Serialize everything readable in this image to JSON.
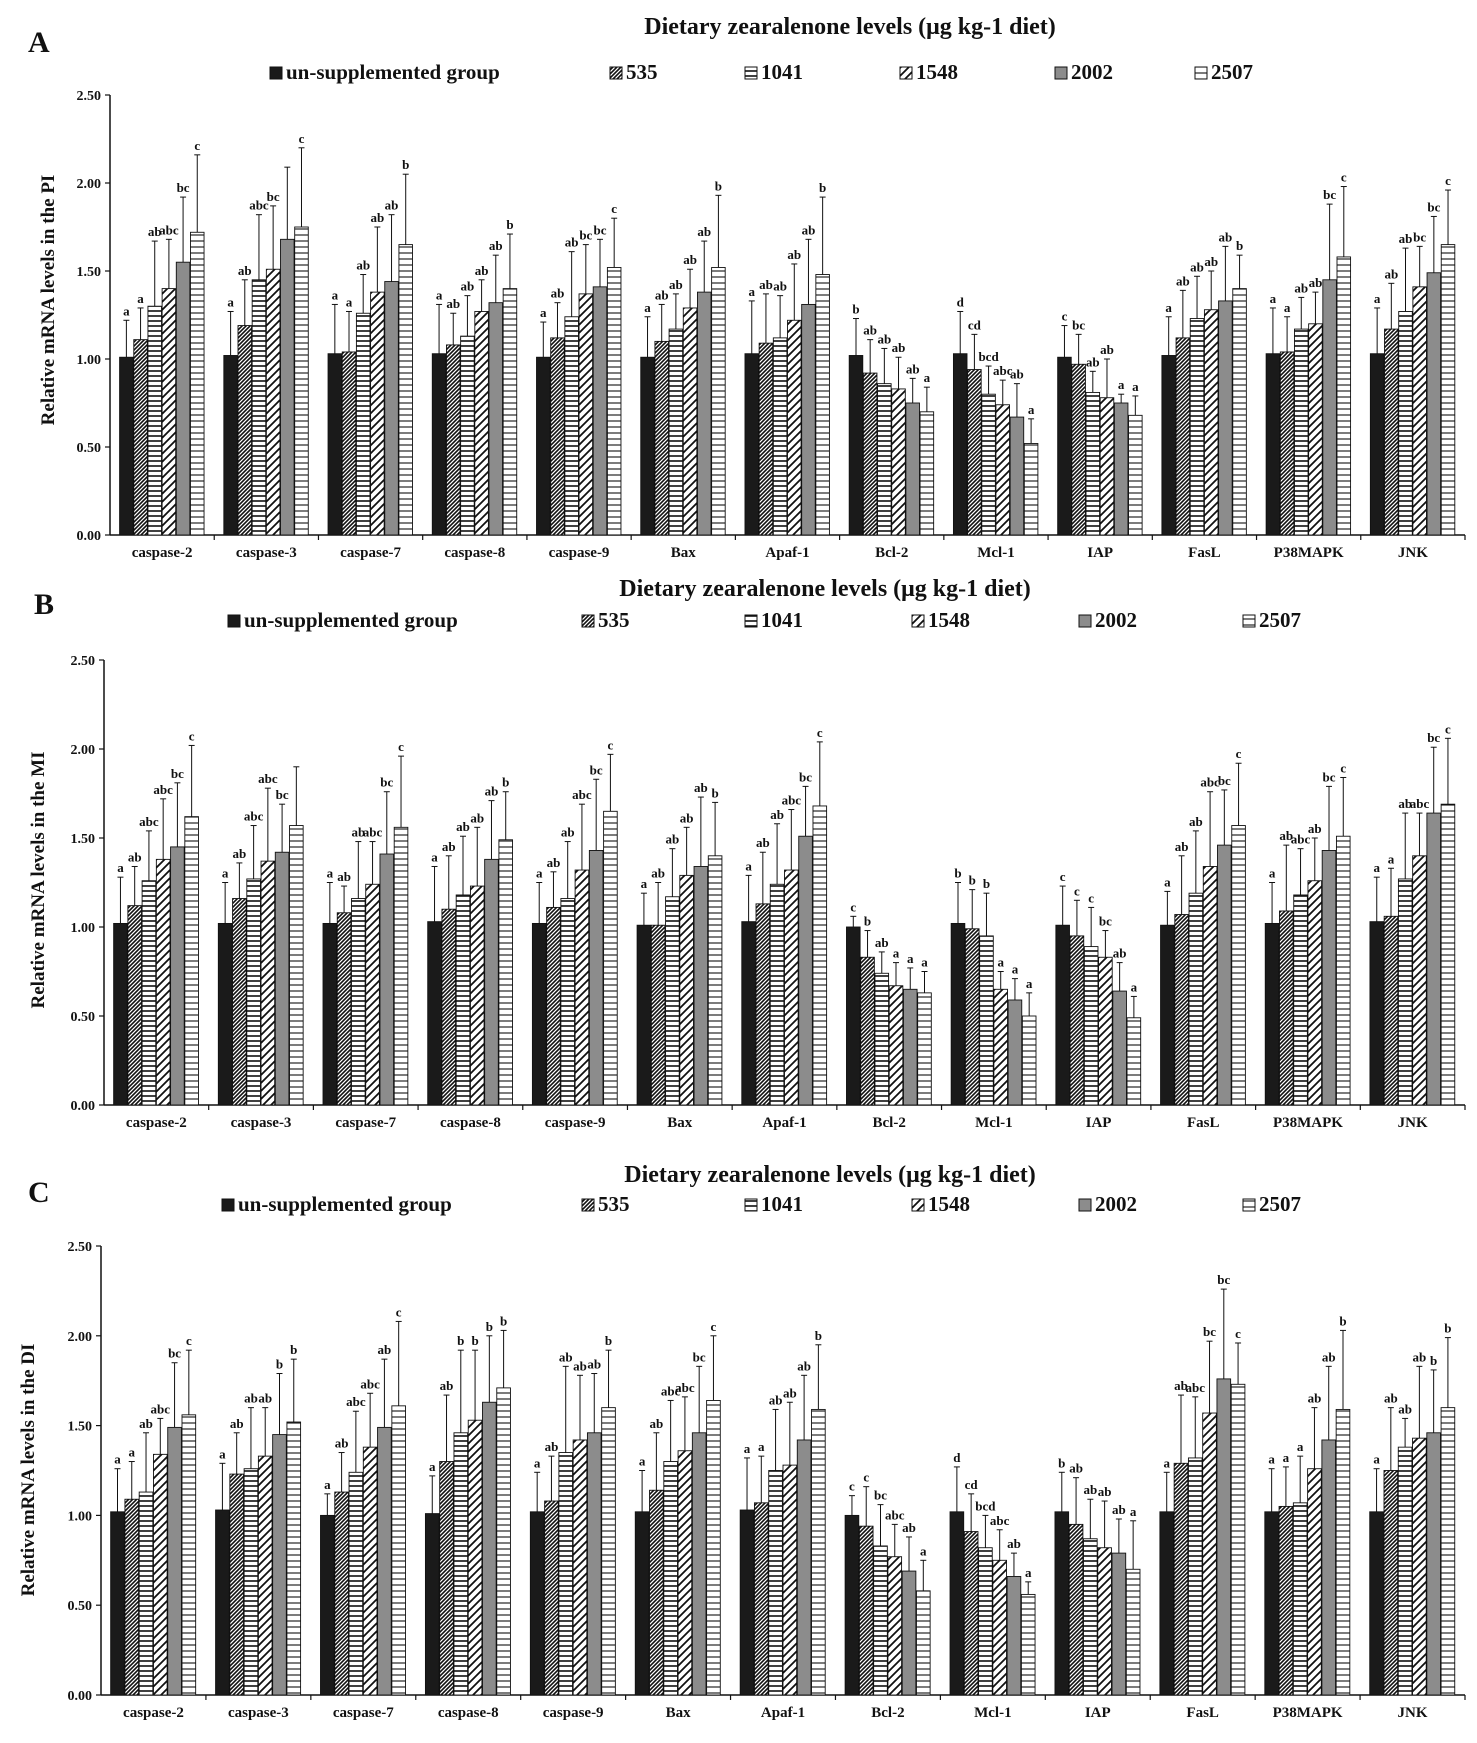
{
  "legend": {
    "entries": [
      "un-supplemented group",
      "535",
      "1041",
      "1548",
      "2002",
      "2507"
    ]
  },
  "series_styles": [
    {
      "fill": "#1a1a1a",
      "pattern": "solid"
    },
    {
      "fill": "#ffffff",
      "pattern": "diag-dense"
    },
    {
      "fill": "#ffffff",
      "pattern": "horizontal"
    },
    {
      "fill": "#ffffff",
      "pattern": "diag-wide"
    },
    {
      "fill": "#8c8c8c",
      "pattern": "solid"
    },
    {
      "fill": "#ffffff",
      "pattern": "horizontal-wide"
    }
  ],
  "chart_data": [
    {
      "type": "bar",
      "panel": "A",
      "title": "Dietary zearalenone levels (μg kg-1 diet)",
      "ylabel": "Relative mRNA levels in the PI",
      "ylim": [
        0,
        2.5
      ],
      "yticks": [
        "0.00",
        "0.50",
        "1.00",
        "1.50",
        "2.00",
        "2.50"
      ],
      "categories": [
        "caspase-2",
        "caspase-3",
        "caspase-7",
        "caspase-8",
        "caspase-9",
        "Bax",
        "Apaf-1",
        "Bcl-2",
        "Mcl-1",
        "IAP",
        "FasL",
        "P38MAPK",
        "JNK"
      ],
      "series": [
        {
          "name": "un-supplemented group",
          "values": [
            1.01,
            1.02,
            1.03,
            1.03,
            1.01,
            1.01,
            1.03,
            1.02,
            1.03,
            1.01,
            1.02,
            1.03,
            1.03
          ],
          "errors": [
            0.21,
            0.25,
            0.28,
            0.28,
            0.2,
            0.23,
            0.3,
            0.21,
            0.24,
            0.18,
            0.22,
            0.26,
            0.26
          ],
          "letters": [
            "a",
            "a",
            "a",
            "a",
            "a",
            "a",
            "a",
            "b",
            "d",
            "c",
            "a",
            "a",
            "a"
          ]
        },
        {
          "name": "535",
          "values": [
            1.11,
            1.19,
            1.04,
            1.08,
            1.12,
            1.1,
            1.09,
            0.92,
            0.94,
            0.97,
            1.12,
            1.04,
            1.17
          ],
          "errors": [
            0.18,
            0.26,
            0.23,
            0.18,
            0.2,
            0.21,
            0.28,
            0.19,
            0.2,
            0.17,
            0.27,
            0.2,
            0.26
          ],
          "letters": [
            "a",
            "ab",
            "a",
            "ab",
            "ab",
            "ab",
            "ab",
            "ab",
            "cd",
            "bc",
            "ab",
            "a",
            "ab"
          ]
        },
        {
          "name": "1041",
          "values": [
            1.3,
            1.45,
            1.26,
            1.13,
            1.24,
            1.17,
            1.12,
            0.86,
            0.8,
            0.81,
            1.23,
            1.17,
            1.27
          ],
          "errors": [
            0.37,
            0.37,
            0.22,
            0.23,
            0.37,
            0.2,
            0.24,
            0.2,
            0.16,
            0.12,
            0.24,
            0.18,
            0.36
          ],
          "letters": [
            "ab",
            "abc",
            "ab",
            "ab",
            "ab",
            "ab",
            "ab",
            "ab",
            "bcd",
            "ab",
            "ab",
            "ab",
            "ab"
          ]
        },
        {
          "name": "1548",
          "values": [
            1.4,
            1.51,
            1.38,
            1.27,
            1.37,
            1.29,
            1.22,
            0.83,
            0.74,
            0.78,
            1.28,
            1.2,
            1.41
          ],
          "errors": [
            0.28,
            0.36,
            0.37,
            0.18,
            0.28,
            0.22,
            0.32,
            0.18,
            0.14,
            0.22,
            0.22,
            0.18,
            0.23
          ],
          "letters": [
            "abc",
            "bc",
            "ab",
            "ab",
            "bc",
            "ab",
            "ab",
            "ab",
            "abc",
            "ab",
            "ab",
            "ab",
            "bc"
          ]
        },
        {
          "name": "2002",
          "values": [
            1.55,
            1.68,
            1.44,
            1.32,
            1.41,
            1.38,
            1.31,
            0.75,
            0.67,
            0.75,
            1.33,
            1.45,
            1.49
          ],
          "errors": [
            0.37,
            0.41,
            0.38,
            0.27,
            0.27,
            0.29,
            0.37,
            0.14,
            0.19,
            0.05,
            0.31,
            0.43,
            0.32
          ],
          "letters": [
            "bc",
            "",
            "ab",
            "ab",
            "bc",
            "ab",
            "ab",
            "ab",
            "ab",
            "a",
            "ab",
            "bc",
            "bc"
          ]
        },
        {
          "name": "2507",
          "values": [
            1.72,
            1.75,
            1.65,
            1.4,
            1.52,
            1.52,
            1.48,
            0.7,
            0.52,
            0.68,
            1.4,
            1.58,
            1.65
          ],
          "errors": [
            0.44,
            0.45,
            0.4,
            0.31,
            0.28,
            0.41,
            0.44,
            0.14,
            0.14,
            0.11,
            0.19,
            0.4,
            0.31
          ],
          "letters": [
            "c",
            "c",
            "b",
            "b",
            "c",
            "b",
            "b",
            "a",
            "a",
            "a",
            "b",
            "c",
            "c"
          ]
        }
      ]
    },
    {
      "type": "bar",
      "panel": "B",
      "title": "Dietary zearalenone levels (μg kg-1 diet)",
      "ylabel": "Relative mRNA levels in the MI",
      "ylim": [
        0,
        2.5
      ],
      "yticks": [
        "0.00",
        "0.50",
        "1.00",
        "1.50",
        "2.00",
        "2.50"
      ],
      "categories": [
        "caspase-2",
        "caspase-3",
        "caspase-7",
        "caspase-8",
        "caspase-9",
        "Bax",
        "Apaf-1",
        "Bcl-2",
        "Mcl-1",
        "IAP",
        "FasL",
        "P38MAPK",
        "JNK"
      ],
      "series": [
        {
          "name": "un-supplemented group",
          "values": [
            1.02,
            1.02,
            1.02,
            1.03,
            1.02,
            1.01,
            1.03,
            1.0,
            1.02,
            1.01,
            1.01,
            1.02,
            1.03
          ],
          "errors": [
            0.26,
            0.23,
            0.23,
            0.31,
            0.23,
            0.18,
            0.26,
            0.06,
            0.23,
            0.22,
            0.19,
            0.23,
            0.25
          ],
          "letters": [
            "a",
            "a",
            "a",
            "a",
            "a",
            "a",
            "a",
            "c",
            "b",
            "c",
            "a",
            "a",
            "a"
          ]
        },
        {
          "name": "535",
          "values": [
            1.12,
            1.16,
            1.08,
            1.1,
            1.11,
            1.01,
            1.13,
            0.83,
            0.99,
            0.95,
            1.07,
            1.09,
            1.06
          ],
          "errors": [
            0.22,
            0.2,
            0.15,
            0.3,
            0.2,
            0.24,
            0.29,
            0.15,
            0.22,
            0.2,
            0.33,
            0.37,
            0.27
          ],
          "letters": [
            "ab",
            "ab",
            "ab",
            "ab",
            "ab",
            "ab",
            "ab",
            "b",
            "b",
            "c",
            "ab",
            "ab",
            "a"
          ]
        },
        {
          "name": "1041",
          "values": [
            1.26,
            1.27,
            1.16,
            1.18,
            1.16,
            1.17,
            1.24,
            0.74,
            0.95,
            0.89,
            1.19,
            1.18,
            1.27
          ],
          "errors": [
            0.28,
            0.3,
            0.32,
            0.33,
            0.32,
            0.27,
            0.34,
            0.12,
            0.24,
            0.22,
            0.35,
            0.26,
            0.37
          ],
          "letters": [
            "abc",
            "abc",
            "ab",
            "ab",
            "ab",
            "ab",
            "ab",
            "ab",
            "b",
            "c",
            "ab",
            "abc",
            "ab"
          ]
        },
        {
          "name": "1548",
          "values": [
            1.38,
            1.37,
            1.24,
            1.23,
            1.32,
            1.29,
            1.32,
            0.67,
            0.65,
            0.83,
            1.34,
            1.26,
            1.4
          ],
          "errors": [
            0.34,
            0.41,
            0.24,
            0.33,
            0.37,
            0.27,
            0.34,
            0.13,
            0.1,
            0.15,
            0.42,
            0.24,
            0.24
          ],
          "letters": [
            "abc",
            "abc",
            "abc",
            "ab",
            "abc",
            "ab",
            "abc",
            "a",
            "a",
            "bc",
            "abc",
            "ab",
            "abc"
          ]
        },
        {
          "name": "2002",
          "values": [
            1.45,
            1.42,
            1.41,
            1.38,
            1.43,
            1.34,
            1.51,
            0.65,
            0.59,
            0.64,
            1.46,
            1.43,
            1.64
          ],
          "errors": [
            0.36,
            0.27,
            0.35,
            0.33,
            0.4,
            0.39,
            0.28,
            0.12,
            0.12,
            0.16,
            0.31,
            0.36,
            0.37
          ],
          "letters": [
            "bc",
            "bc",
            "bc",
            "ab",
            "bc",
            "ab",
            "bc",
            "a",
            "a",
            "ab",
            "bc",
            "bc",
            "bc"
          ]
        },
        {
          "name": "2507",
          "values": [
            1.62,
            1.57,
            1.56,
            1.49,
            1.65,
            1.4,
            1.68,
            0.63,
            0.5,
            0.49,
            1.57,
            1.51,
            1.69
          ],
          "errors": [
            0.4,
            0.33,
            0.4,
            0.27,
            0.32,
            0.3,
            0.36,
            0.12,
            0.13,
            0.12,
            0.35,
            0.33,
            0.37
          ],
          "letters": [
            "c",
            "",
            "c",
            "b",
            "c",
            "b",
            "c",
            "a",
            "a",
            "a",
            "c",
            "c",
            "c"
          ]
        }
      ]
    },
    {
      "type": "bar",
      "panel": "C",
      "title": "Dietary zearalenone levels (μg kg-1 diet)",
      "ylabel": "Relative mRNA levels in the DI",
      "ylim": [
        0,
        2.5
      ],
      "yticks": [
        "0.00",
        "0.50",
        "1.00",
        "1.50",
        "2.00",
        "2.50"
      ],
      "categories": [
        "caspase-2",
        "caspase-3",
        "caspase-7",
        "caspase-8",
        "caspase-9",
        "Bax",
        "Apaf-1",
        "Bcl-2",
        "Mcl-1",
        "IAP",
        "FasL",
        "P38MAPK",
        "JNK"
      ],
      "series": [
        {
          "name": "un-supplemented group",
          "values": [
            1.02,
            1.03,
            1.0,
            1.01,
            1.02,
            1.02,
            1.03,
            1.0,
            1.02,
            1.02,
            1.02,
            1.02,
            1.02
          ],
          "errors": [
            0.24,
            0.26,
            0.12,
            0.21,
            0.22,
            0.23,
            0.29,
            0.11,
            0.25,
            0.22,
            0.22,
            0.24,
            0.24
          ],
          "letters": [
            "a",
            "a",
            "a",
            "a",
            "a",
            "a",
            "a",
            "c",
            "d",
            "b",
            "a",
            "a",
            "a"
          ]
        },
        {
          "name": "535",
          "values": [
            1.09,
            1.23,
            1.13,
            1.3,
            1.08,
            1.14,
            1.07,
            0.94,
            0.91,
            0.95,
            1.29,
            1.05,
            1.25
          ],
          "errors": [
            0.21,
            0.23,
            0.22,
            0.37,
            0.25,
            0.32,
            0.26,
            0.22,
            0.21,
            0.26,
            0.38,
            0.22,
            0.35
          ],
          "letters": [
            "a",
            "ab",
            "ab",
            "ab",
            "ab",
            "ab",
            "a",
            "c",
            "cd",
            "ab",
            "ab",
            "a",
            "ab"
          ]
        },
        {
          "name": "1041",
          "values": [
            1.13,
            1.26,
            1.24,
            1.46,
            1.35,
            1.3,
            1.25,
            0.83,
            0.82,
            0.87,
            1.32,
            1.07,
            1.38
          ],
          "errors": [
            0.33,
            0.34,
            0.34,
            0.46,
            0.48,
            0.34,
            0.34,
            0.23,
            0.18,
            0.22,
            0.34,
            0.26,
            0.16
          ],
          "letters": [
            "ab",
            "ab",
            "abc",
            "b",
            "ab",
            "abc",
            "ab",
            "bc",
            "bcd",
            "ab",
            "abc",
            "a",
            "ab"
          ]
        },
        {
          "name": "1548",
          "values": [
            1.34,
            1.33,
            1.38,
            1.53,
            1.42,
            1.36,
            1.28,
            0.77,
            0.75,
            0.82,
            1.57,
            1.26,
            1.43
          ],
          "errors": [
            0.2,
            0.27,
            0.3,
            0.39,
            0.36,
            0.3,
            0.35,
            0.18,
            0.17,
            0.26,
            0.4,
            0.34,
            0.4
          ],
          "letters": [
            "abc",
            "ab",
            "abc",
            "b",
            "ab",
            "abc",
            "ab",
            "abc",
            "abc",
            "ab",
            "bc",
            "ab",
            "ab"
          ]
        },
        {
          "name": "2002",
          "values": [
            1.49,
            1.45,
            1.49,
            1.63,
            1.46,
            1.46,
            1.42,
            0.69,
            0.66,
            0.79,
            1.76,
            1.42,
            1.46
          ],
          "errors": [
            0.36,
            0.34,
            0.38,
            0.37,
            0.33,
            0.37,
            0.36,
            0.19,
            0.13,
            0.19,
            0.5,
            0.41,
            0.35
          ],
          "letters": [
            "bc",
            "b",
            "ab",
            "b",
            "ab",
            "bc",
            "ab",
            "ab",
            "ab",
            "ab",
            "bc",
            "ab",
            "b"
          ]
        },
        {
          "name": "2507",
          "values": [
            1.56,
            1.52,
            1.61,
            1.71,
            1.6,
            1.64,
            1.59,
            0.58,
            0.56,
            0.7,
            1.73,
            1.59,
            1.6
          ],
          "errors": [
            0.36,
            0.35,
            0.47,
            0.32,
            0.32,
            0.36,
            0.36,
            0.17,
            0.07,
            0.27,
            0.23,
            0.44,
            0.39
          ],
          "letters": [
            "c",
            "b",
            "c",
            "b",
            "b",
            "c",
            "b",
            "a",
            "a",
            "a",
            "c",
            "b",
            "b"
          ]
        }
      ]
    }
  ]
}
